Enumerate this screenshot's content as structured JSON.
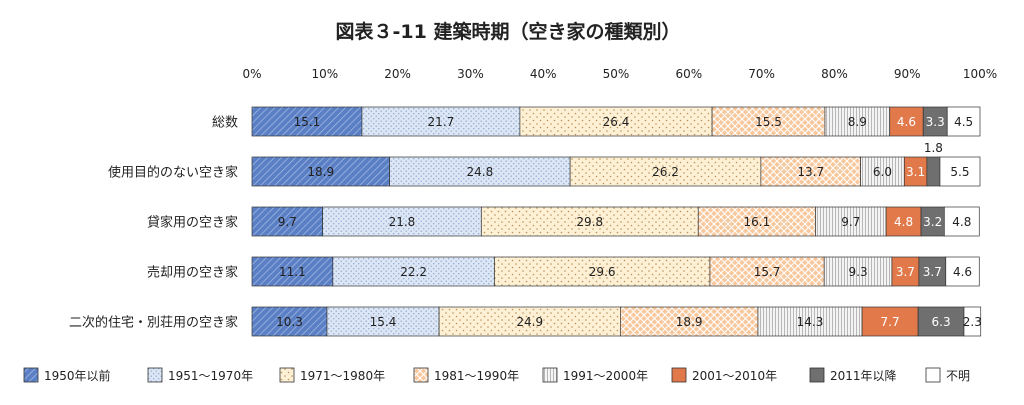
{
  "chart_data": {
    "type": "bar",
    "orientation": "horizontal",
    "stacked": "percent",
    "title": "図表３-11 建築時期（空き家の種類別）",
    "xlabel": "",
    "ylabel": "",
    "xlim": [
      0,
      100
    ],
    "x_tick_labels": [
      "0%",
      "10%",
      "20%",
      "30%",
      "40%",
      "50%",
      "60%",
      "70%",
      "80%",
      "90%",
      "100%"
    ],
    "categories": [
      "総数",
      "使用目的のない空き家",
      "貸家用の空き家",
      "売却用の空き家",
      "二次的住宅・別荘用の空き家"
    ],
    "series": [
      {
        "name": "1950年以前",
        "values": [
          15.1,
          18.9,
          9.7,
          11.1,
          10.3
        ],
        "labels": [
          "15.1",
          "18.9",
          "9.7",
          "11.1",
          "10.3"
        ]
      },
      {
        "name": "1951～1970年",
        "values": [
          21.7,
          24.8,
          21.8,
          22.2,
          15.4
        ],
        "labels": [
          "21.7",
          "24.8",
          "21.8",
          "22.2",
          "15.4"
        ]
      },
      {
        "name": "1971～1980年",
        "values": [
          26.4,
          26.2,
          29.8,
          29.6,
          24.9
        ],
        "labels": [
          "26.4",
          "26.2",
          "29.8",
          "29.6",
          "24.9"
        ]
      },
      {
        "name": "1981～1990年",
        "values": [
          15.5,
          13.7,
          16.1,
          15.7,
          18.9
        ],
        "labels": [
          "15.5",
          "13.7",
          "16.1",
          "15.7",
          "18.9"
        ]
      },
      {
        "name": "1991～2000年",
        "values": [
          8.9,
          6.0,
          9.7,
          9.3,
          14.3
        ],
        "labels": [
          "8.9",
          "6.0",
          "9.7",
          "9.3",
          "14.3"
        ]
      },
      {
        "name": "2001～2010年",
        "values": [
          4.6,
          3.1,
          4.8,
          3.7,
          7.7
        ],
        "labels": [
          "4.6",
          "3.1",
          "4.8",
          "3.7",
          "7.7"
        ]
      },
      {
        "name": "2011年以降",
        "values": [
          3.3,
          1.8,
          3.2,
          3.7,
          6.3
        ],
        "labels": [
          "3.3",
          "1.8",
          "3.2",
          "3.7",
          "6.3"
        ]
      },
      {
        "name": "不明",
        "values": [
          4.5,
          5.5,
          4.8,
          4.6,
          2.3
        ],
        "labels": [
          "4.5",
          "5.5",
          "4.8",
          "4.6",
          "2.3"
        ]
      }
    ],
    "grid": false,
    "legend_position": "bottom",
    "colors": [
      "#5b7fc4",
      "#dce6f4",
      "#fdf0d5",
      "#f9c79c",
      "#e8e8e8",
      "#e2794a",
      "#6f6f6f",
      "#ffffff"
    ],
    "patterns": [
      "diagonal-hatch",
      "dots",
      "dots",
      "crosshatch",
      "vertical-lines",
      "solid",
      "solid",
      "solid"
    ]
  }
}
